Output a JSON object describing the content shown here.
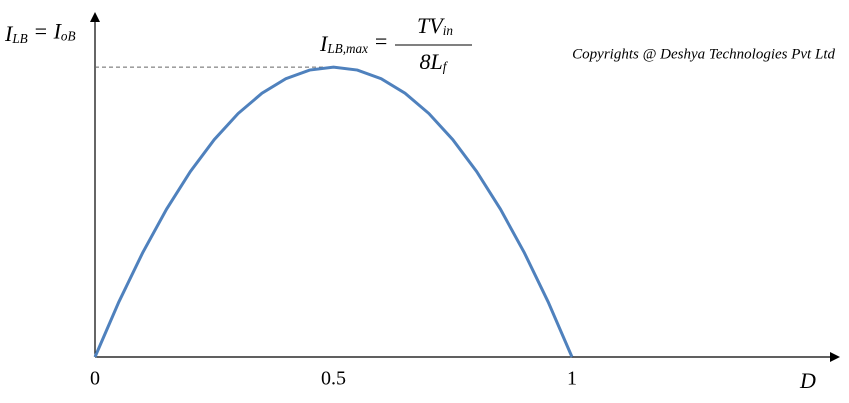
{
  "chart_data": {
    "type": "line",
    "y_label": [
      {
        "text": "I",
        "style": "normal"
      },
      {
        "text": "LB",
        "style": "sub"
      },
      {
        "text": " = I",
        "style": "normal"
      },
      {
        "text": "oB",
        "style": "sub"
      }
    ],
    "x_label": "D",
    "annotation": {
      "lhs": [
        {
          "text": "I",
          "style": "normal"
        },
        {
          "text": "LB,max",
          "style": "sub"
        },
        {
          "text": " =",
          "style": "normal"
        }
      ],
      "numerator": [
        {
          "text": "TV",
          "style": "normal"
        },
        {
          "text": "in",
          "style": "sub"
        }
      ],
      "denominator": [
        {
          "text": "8L",
          "style": "normal"
        },
        {
          "text": "f",
          "style": "sub"
        }
      ]
    },
    "watermark": "Copyrights @ Deshya Technologies Pvt Ltd",
    "x": [
      0,
      0.05,
      0.1,
      0.15,
      0.2,
      0.25,
      0.3,
      0.35,
      0.4,
      0.45,
      0.5,
      0.55,
      0.6,
      0.65,
      0.7,
      0.75,
      0.8,
      0.85,
      0.9,
      0.95,
      1
    ],
    "series": [
      {
        "color": "#4f81bd",
        "values": [
          0,
          0.19,
          0.36,
          0.51,
          0.64,
          0.75,
          0.84,
          0.91,
          0.96,
          0.99,
          1,
          0.99,
          0.96,
          0.91,
          0.84,
          0.75,
          0.64,
          0.51,
          0.36,
          0.19,
          0
        ]
      }
    ],
    "xlim": [
      0,
      1.56
    ],
    "xticks": [
      0,
      0.5,
      1
    ],
    "ylim": [
      0,
      1.18
    ]
  }
}
